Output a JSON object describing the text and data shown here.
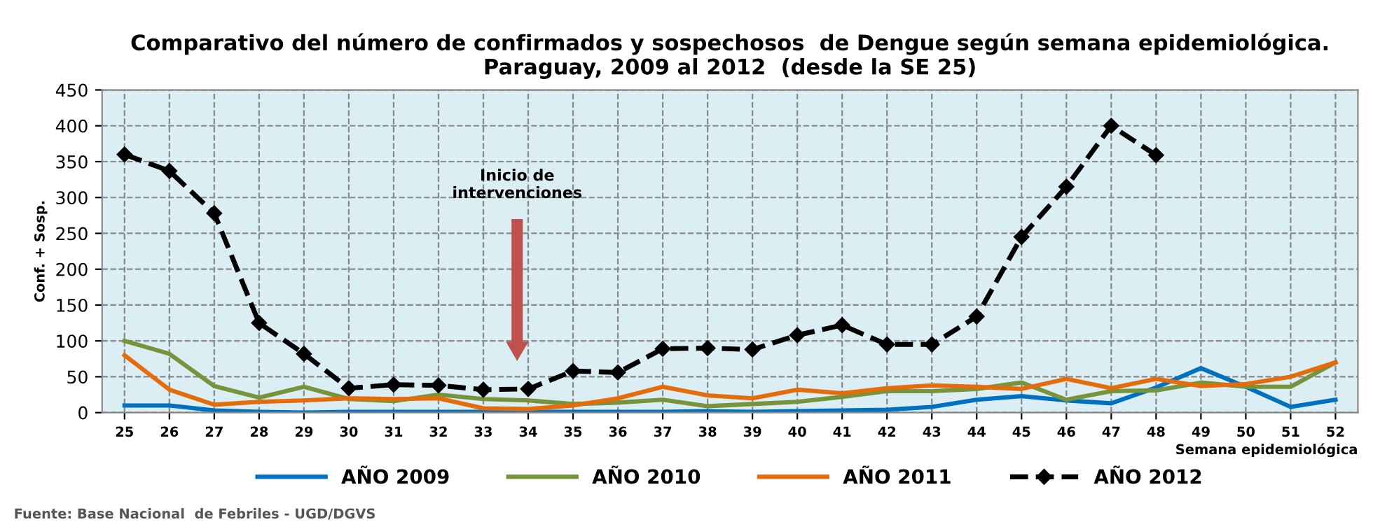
{
  "chart_data": {
    "type": "line",
    "title": "Comparativo del número de confirmados y sospechosos  de Dengue según semana epidemiológica.\nParaguay, 2009 al 2012  (desde la SE 25)",
    "xlabel": "Semana epidemiológica",
    "ylabel": "Conf. + Sosp.",
    "categories": [
      "25",
      "26",
      "27",
      "28",
      "29",
      "30",
      "31",
      "32",
      "33",
      "34",
      "35",
      "36",
      "37",
      "38",
      "39",
      "40",
      "41",
      "42",
      "43",
      "44",
      "45",
      "46",
      "47",
      "48",
      "49",
      "50",
      "51",
      "52"
    ],
    "series": [
      {
        "name": "AÑO 2009",
        "color": "#0070c0",
        "marker": "none",
        "line_style": "solid",
        "values": [
          10,
          10,
          3,
          1,
          0,
          1,
          1,
          1,
          1,
          1,
          1,
          1,
          1,
          2,
          1,
          2,
          3,
          4,
          8,
          18,
          23,
          17,
          13,
          35,
          62,
          36,
          8,
          18
        ]
      },
      {
        "name": "AÑO 2010",
        "color": "#77933c",
        "marker": "none",
        "line_style": "solid",
        "values": [
          100,
          82,
          37,
          21,
          36,
          19,
          16,
          25,
          19,
          17,
          12,
          14,
          18,
          9,
          12,
          15,
          22,
          30,
          30,
          33,
          42,
          18,
          30,
          31,
          42,
          36,
          36,
          70
        ]
      },
      {
        "name": "AÑO 2011",
        "color": "#e46c0a",
        "marker": "none",
        "line_style": "solid",
        "values": [
          80,
          32,
          11,
          15,
          17,
          20,
          19,
          20,
          6,
          5,
          10,
          20,
          36,
          24,
          20,
          32,
          27,
          34,
          38,
          36,
          33,
          47,
          34,
          47,
          37,
          40,
          50,
          70
        ]
      },
      {
        "name": "AÑO 2012",
        "color": "#000000",
        "marker": "diamond",
        "line_style": "dashed",
        "values": [
          360,
          337,
          278,
          125,
          82,
          34,
          39,
          38,
          32,
          33,
          58,
          56,
          89,
          90,
          88,
          108,
          122,
          95,
          95,
          134,
          245,
          315,
          400,
          359,
          null,
          null,
          null,
          null
        ]
      }
    ],
    "ylim": [
      0,
      450
    ],
    "yticks": [
      0,
      50,
      100,
      150,
      200,
      250,
      300,
      350,
      400,
      450
    ],
    "grid": true,
    "legend": "bottom",
    "annotations": [
      "Inicio de\nintervenciones",
      "Fuente: Base Nacional  de Febriles - UGD/DGVS"
    ]
  }
}
